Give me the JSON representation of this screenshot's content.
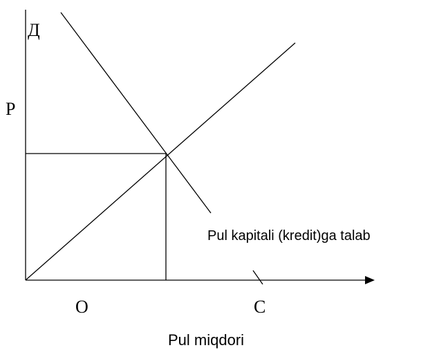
{
  "diagram": {
    "y_axis_label": "Д",
    "price_label": "P",
    "origin_label": "O",
    "supply_label": "C",
    "demand_curve_label": "Pul kapitali (kredit)ga talab",
    "x_axis_title": "Pul miqdori"
  }
}
